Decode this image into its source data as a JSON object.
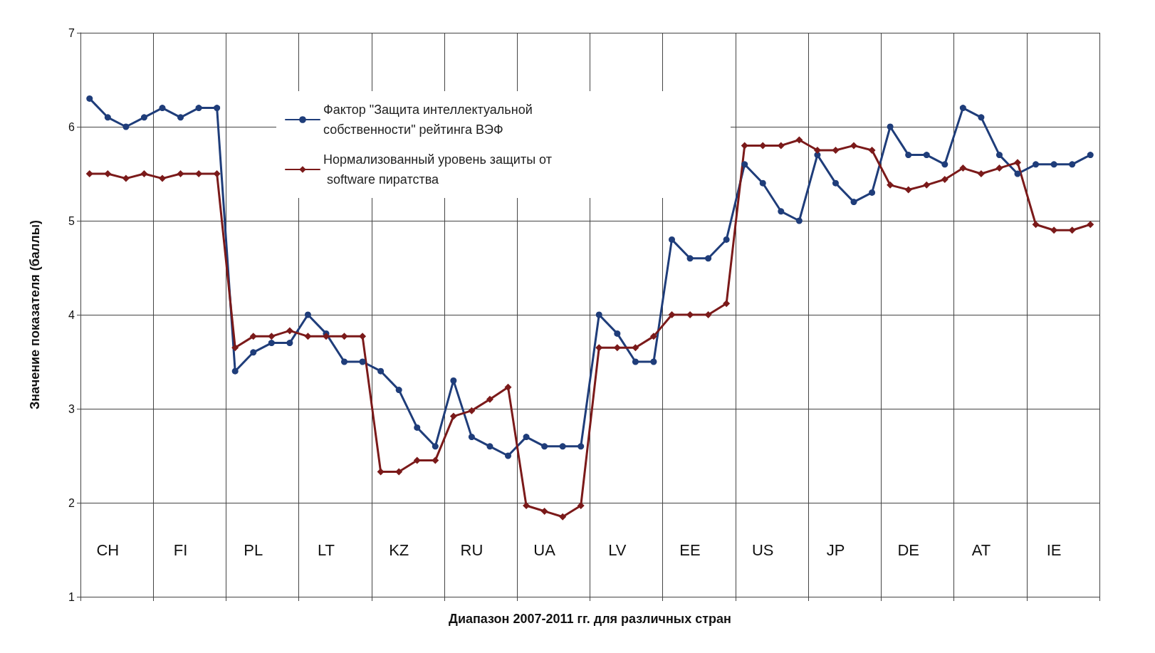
{
  "chart_data": {
    "type": "line",
    "xlabel": "Диапазон 2007-2011 гг. для различных стран",
    "ylabel": "Значение показателя (баллы)",
    "categories": [
      null,
      "CH",
      null,
      null,
      null,
      "FI",
      null,
      null,
      null,
      "PL",
      null,
      null,
      null,
      "LT",
      null,
      null,
      null,
      "KZ",
      null,
      null,
      null,
      "RU",
      null,
      null,
      null,
      "UA",
      null,
      null,
      null,
      "LV",
      null,
      null,
      null,
      "EE",
      null,
      null,
      null,
      "US",
      null,
      null,
      null,
      "JP",
      null,
      null,
      null,
      "DE",
      null,
      null,
      null,
      "AT",
      null,
      null,
      null,
      "IE",
      null,
      null
    ],
    "series": [
      {
        "name": "Фактор \"Защита интеллектуальной собственности\" рейтинга ВЭФ",
        "color": "#1f3d7a",
        "marker": "circle",
        "values": [
          6.3,
          6.1,
          6.0,
          6.1,
          6.2,
          6.1,
          6.2,
          6.2,
          3.4,
          3.6,
          3.7,
          3.7,
          4.0,
          3.8,
          3.5,
          3.5,
          3.4,
          3.2,
          2.8,
          2.6,
          3.3,
          2.7,
          2.6,
          2.5,
          2.7,
          2.6,
          2.6,
          2.6,
          4.0,
          3.8,
          3.5,
          3.5,
          4.8,
          4.6,
          4.6,
          4.8,
          5.6,
          5.4,
          5.1,
          5.0,
          5.7,
          5.4,
          5.2,
          5.3,
          6.0,
          5.7,
          5.7,
          5.6,
          6.2,
          6.1,
          5.7,
          5.5,
          5.6,
          5.6,
          5.6,
          5.7
        ]
      },
      {
        "name": "Нормализованный уровень защиты от software пиратства",
        "color": "#7b1a1a",
        "marker": "diamond",
        "values": [
          5.5,
          5.5,
          5.45,
          5.5,
          5.45,
          5.5,
          5.5,
          5.5,
          3.65,
          3.77,
          3.77,
          3.83,
          3.77,
          3.77,
          3.77,
          3.77,
          2.33,
          2.33,
          2.45,
          2.45,
          2.92,
          2.98,
          3.1,
          3.23,
          1.97,
          1.91,
          1.85,
          1.97,
          3.65,
          3.65,
          3.65,
          3.77,
          4.0,
          4.0,
          4.0,
          4.12,
          5.8,
          5.8,
          5.8,
          5.86,
          5.75,
          5.75,
          5.8,
          5.75,
          5.38,
          5.33,
          5.38,
          5.44,
          5.56,
          5.5,
          5.56,
          5.62,
          4.96,
          4.9,
          4.9,
          4.96
        ]
      }
    ],
    "ylim": [
      1,
      7
    ],
    "yticks": [
      1,
      2,
      3,
      4,
      5,
      6,
      7
    ],
    "grid": true,
    "legend": "top",
    "line_style": "solid"
  }
}
